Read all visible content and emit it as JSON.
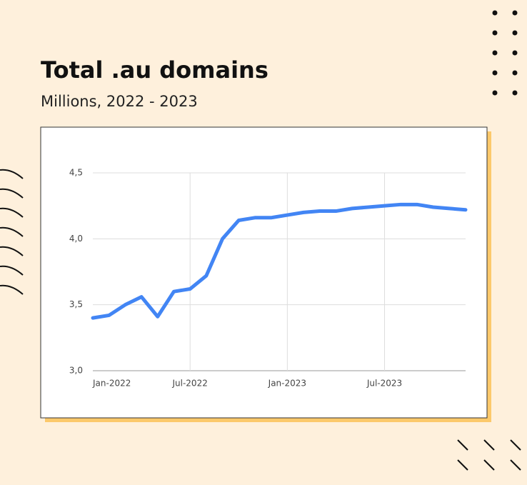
{
  "chart_data": {
    "type": "line",
    "title": "Total .au domains",
    "subtitle": "Millions, 2022 - 2023",
    "categories": [
      "Jan-2022",
      null,
      null,
      null,
      null,
      null,
      "Jul-2022",
      null,
      null,
      null,
      null,
      null,
      "Jan-2023",
      null,
      null,
      null,
      null,
      null,
      "Jul-2023",
      null,
      null,
      null,
      null,
      null
    ],
    "series": [
      {
        "color": "#4285f4",
        "values": [
          3.4,
          3.42,
          3.5,
          3.56,
          3.41,
          3.6,
          3.62,
          3.72,
          4.0,
          4.14,
          4.16,
          4.16,
          4.18,
          4.2,
          4.21,
          4.21,
          4.23,
          4.24,
          4.25,
          4.26,
          4.26,
          4.24,
          4.23,
          4.22
        ]
      }
    ],
    "ylim": [
      3.0,
      4.5
    ],
    "yticks": [
      {
        "value": 3.0,
        "label": "3,0"
      },
      {
        "value": 3.5,
        "label": "3,5"
      },
      {
        "value": 4.0,
        "label": "4,0"
      },
      {
        "value": 4.5,
        "label": "4,5"
      }
    ],
    "grid": true
  }
}
